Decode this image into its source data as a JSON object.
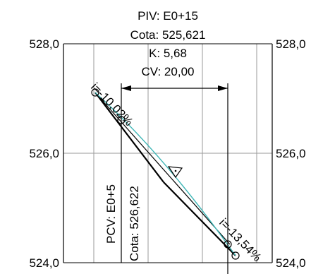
{
  "piv": {
    "station": "PIV: E0+15",
    "elevation": "Cota: 525,621",
    "k": "K: 5,68",
    "cv": "CV: 20,00"
  },
  "pcv": {
    "station": "PCV: E0+5",
    "elevation": "Cota: 526,622"
  },
  "grades": {
    "incoming": "i=-10,02%",
    "outgoing": "i=-13,54%"
  },
  "axis": {
    "left": {
      "top": "528,0",
      "mid": "526,0",
      "bottom": "524,0"
    },
    "right": {
      "top": "528,0",
      "mid": "526,0",
      "bottom": "524,0"
    }
  },
  "colors": {
    "tangent": "#000000",
    "curve": "#3fb6b6",
    "grid": "#9a9a9a",
    "frame": "#000000"
  }
}
